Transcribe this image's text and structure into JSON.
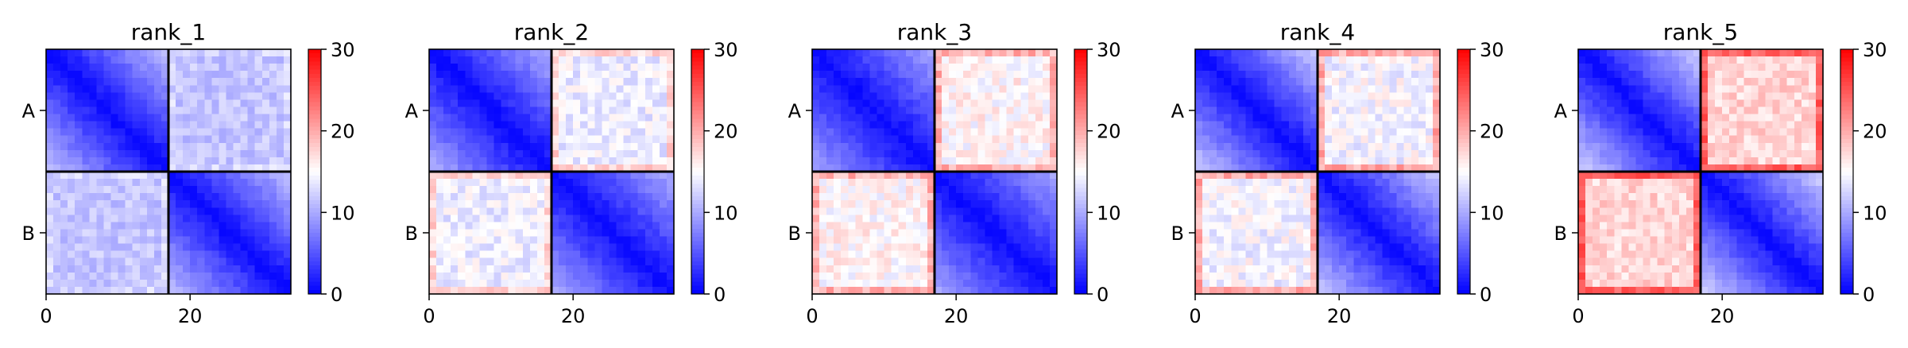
{
  "chart_data": {
    "type": "heatmap",
    "layout": "1 row x 5 panels, each with its own colorbar",
    "colormap": {
      "name": "bwr",
      "colors": [
        "#0000ff",
        "#ffffff",
        "#ff0000"
      ],
      "vmin": 0,
      "vmax": 30,
      "colorbar_ticks": [
        "0",
        "10",
        "20",
        "30"
      ]
    },
    "matrix_size": 34,
    "block_boundary": 17,
    "x_ticks": [
      0,
      20
    ],
    "x_tick_labels": [
      "0",
      "20"
    ],
    "y_tick_labels": [
      "A",
      "B"
    ],
    "divider_color": "#000000",
    "panels": [
      {
        "title": "rank_1",
        "diag_value": 0.5,
        "within_block_max": 10.5,
        "between_block_mean": 11.5,
        "between_variation": 1.6,
        "edge_boost": 1.0,
        "seed": 11
      },
      {
        "title": "rank_2",
        "diag_value": 0.5,
        "within_block_max": 9.5,
        "between_block_mean": 14.0,
        "between_variation": 2.0,
        "edge_boost": 3.5,
        "seed": 23
      },
      {
        "title": "rank_3",
        "diag_value": 0.5,
        "within_block_max": 9.0,
        "between_block_mean": 15.5,
        "between_variation": 2.2,
        "edge_boost": 4.0,
        "seed": 37
      },
      {
        "title": "rank_4",
        "diag_value": 0.5,
        "within_block_max": 11.0,
        "between_block_mean": 14.5,
        "between_variation": 2.2,
        "edge_boost": 5.5,
        "seed": 41
      },
      {
        "title": "rank_5",
        "diag_value": 0.5,
        "within_block_max": 11.5,
        "between_block_mean": 17.5,
        "between_variation": 2.0,
        "edge_boost": 7.0,
        "seed": 53
      }
    ]
  }
}
